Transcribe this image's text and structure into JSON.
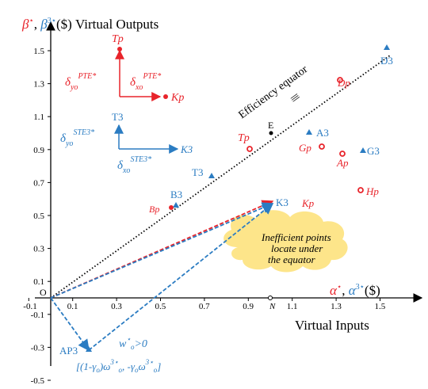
{
  "colors": {
    "red": "#e8242b",
    "blue": "#2b7cc2",
    "black": "#000000",
    "cloud": "#fde58a"
  },
  "titles": {
    "y_sym": "β*, ",
    "y_sym2": "β3*($)",
    "y_text": "Virtual Outputs",
    "x_sym": "α*, ",
    "x_sym2": "α3*($)",
    "x_text": "Virtual Inputs"
  },
  "axis": {
    "origin": "O",
    "n_label": "N",
    "x_ticks": [
      "-0.1",
      "0.1",
      "0.3",
      "0.5",
      "0.7",
      "0.9",
      "1.1",
      "1.3",
      "1.5"
    ],
    "y_ticks": [
      "1.5",
      "1.3",
      "1.1",
      "0.9",
      "0.7",
      "0.5",
      "0.3",
      "0.1",
      "-0.1",
      "-0.3",
      "-0.5"
    ]
  },
  "equator": {
    "label": "Efficiency equator",
    "mark": "|||"
  },
  "points": {
    "D3": "D3",
    "Dp": "Dp",
    "A3": "A3",
    "E": "E",
    "Gp": "Gp",
    "G3": "G3",
    "Ap": "Ap",
    "Tp": "Tp",
    "T3": "T3",
    "Hp": "Hp",
    "B3": "B3",
    "Bp": "Bp",
    "K3": "K3",
    "Kp": "Kp",
    "AP3": "AP3"
  },
  "legend": {
    "tp": "Tp",
    "kp": "Kp",
    "t3": "T3",
    "k3": "K3",
    "pte_yo": "PTE*",
    "pte_xo": "PTE*",
    "ste_yo": "STE3*",
    "ste_xo": "STE3*"
  },
  "cloud_text": [
    "Inefficient points",
    "locate under",
    "the equator"
  ],
  "weight": "w*o>0",
  "formula": "[(1-γo)ω3*o, -γoω3*o]"
}
